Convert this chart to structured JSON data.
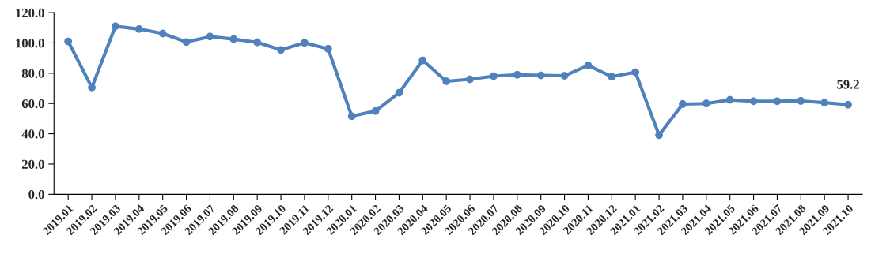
{
  "chart_data": {
    "type": "line",
    "categories": [
      "2019.01",
      "2019.02",
      "2019.03",
      "2019.04",
      "2019.05",
      "2019.06",
      "2019.07",
      "2019.08",
      "2019.09",
      "2019.10",
      "2019.11",
      "2019.12",
      "2020.01",
      "2020.02",
      "2020.03",
      "2020.04",
      "2020.05",
      "2020.06",
      "2020.07",
      "2020.08",
      "2020.09",
      "2020.10",
      "2020.11",
      "2020.12",
      "2021.01",
      "2021.02",
      "2021.03",
      "2021.04",
      "2021.05",
      "2021.06",
      "2021.07",
      "2021.08",
      "2021.09",
      "2021.10"
    ],
    "series": [
      {
        "color": "#4f81bd",
        "values": [
          101.0,
          70.6,
          111.0,
          109.2,
          106.2,
          100.6,
          104.2,
          102.5,
          100.4,
          95.4,
          100.1,
          96.1,
          51.6,
          55.0,
          67.1,
          88.5,
          74.7,
          76.0,
          78.1,
          79.0,
          78.6,
          78.3,
          85.2,
          77.7,
          80.7,
          39.1,
          59.6,
          60.0,
          62.4,
          61.5,
          61.5,
          61.7,
          60.6,
          59.2
        ],
        "value_labels": [
          null,
          null,
          null,
          null,
          null,
          null,
          null,
          null,
          null,
          null,
          null,
          null,
          null,
          null,
          null,
          null,
          null,
          null,
          null,
          null,
          null,
          null,
          null,
          null,
          null,
          null,
          null,
          null,
          null,
          null,
          null,
          null,
          null,
          "59.2"
        ]
      }
    ],
    "ylim": [
      0,
      120
    ],
    "yticks": [
      {
        "value": 0,
        "label": "0.0"
      },
      {
        "value": 20,
        "label": "20.0"
      },
      {
        "value": 40,
        "label": "40.0"
      },
      {
        "value": 60,
        "label": "60.0"
      },
      {
        "value": 80,
        "label": "80.0"
      },
      {
        "value": 100,
        "label": "100.0"
      },
      {
        "value": 120,
        "label": "120.0"
      }
    ],
    "grid": false,
    "marker": "circle",
    "line_style": "solid"
  }
}
